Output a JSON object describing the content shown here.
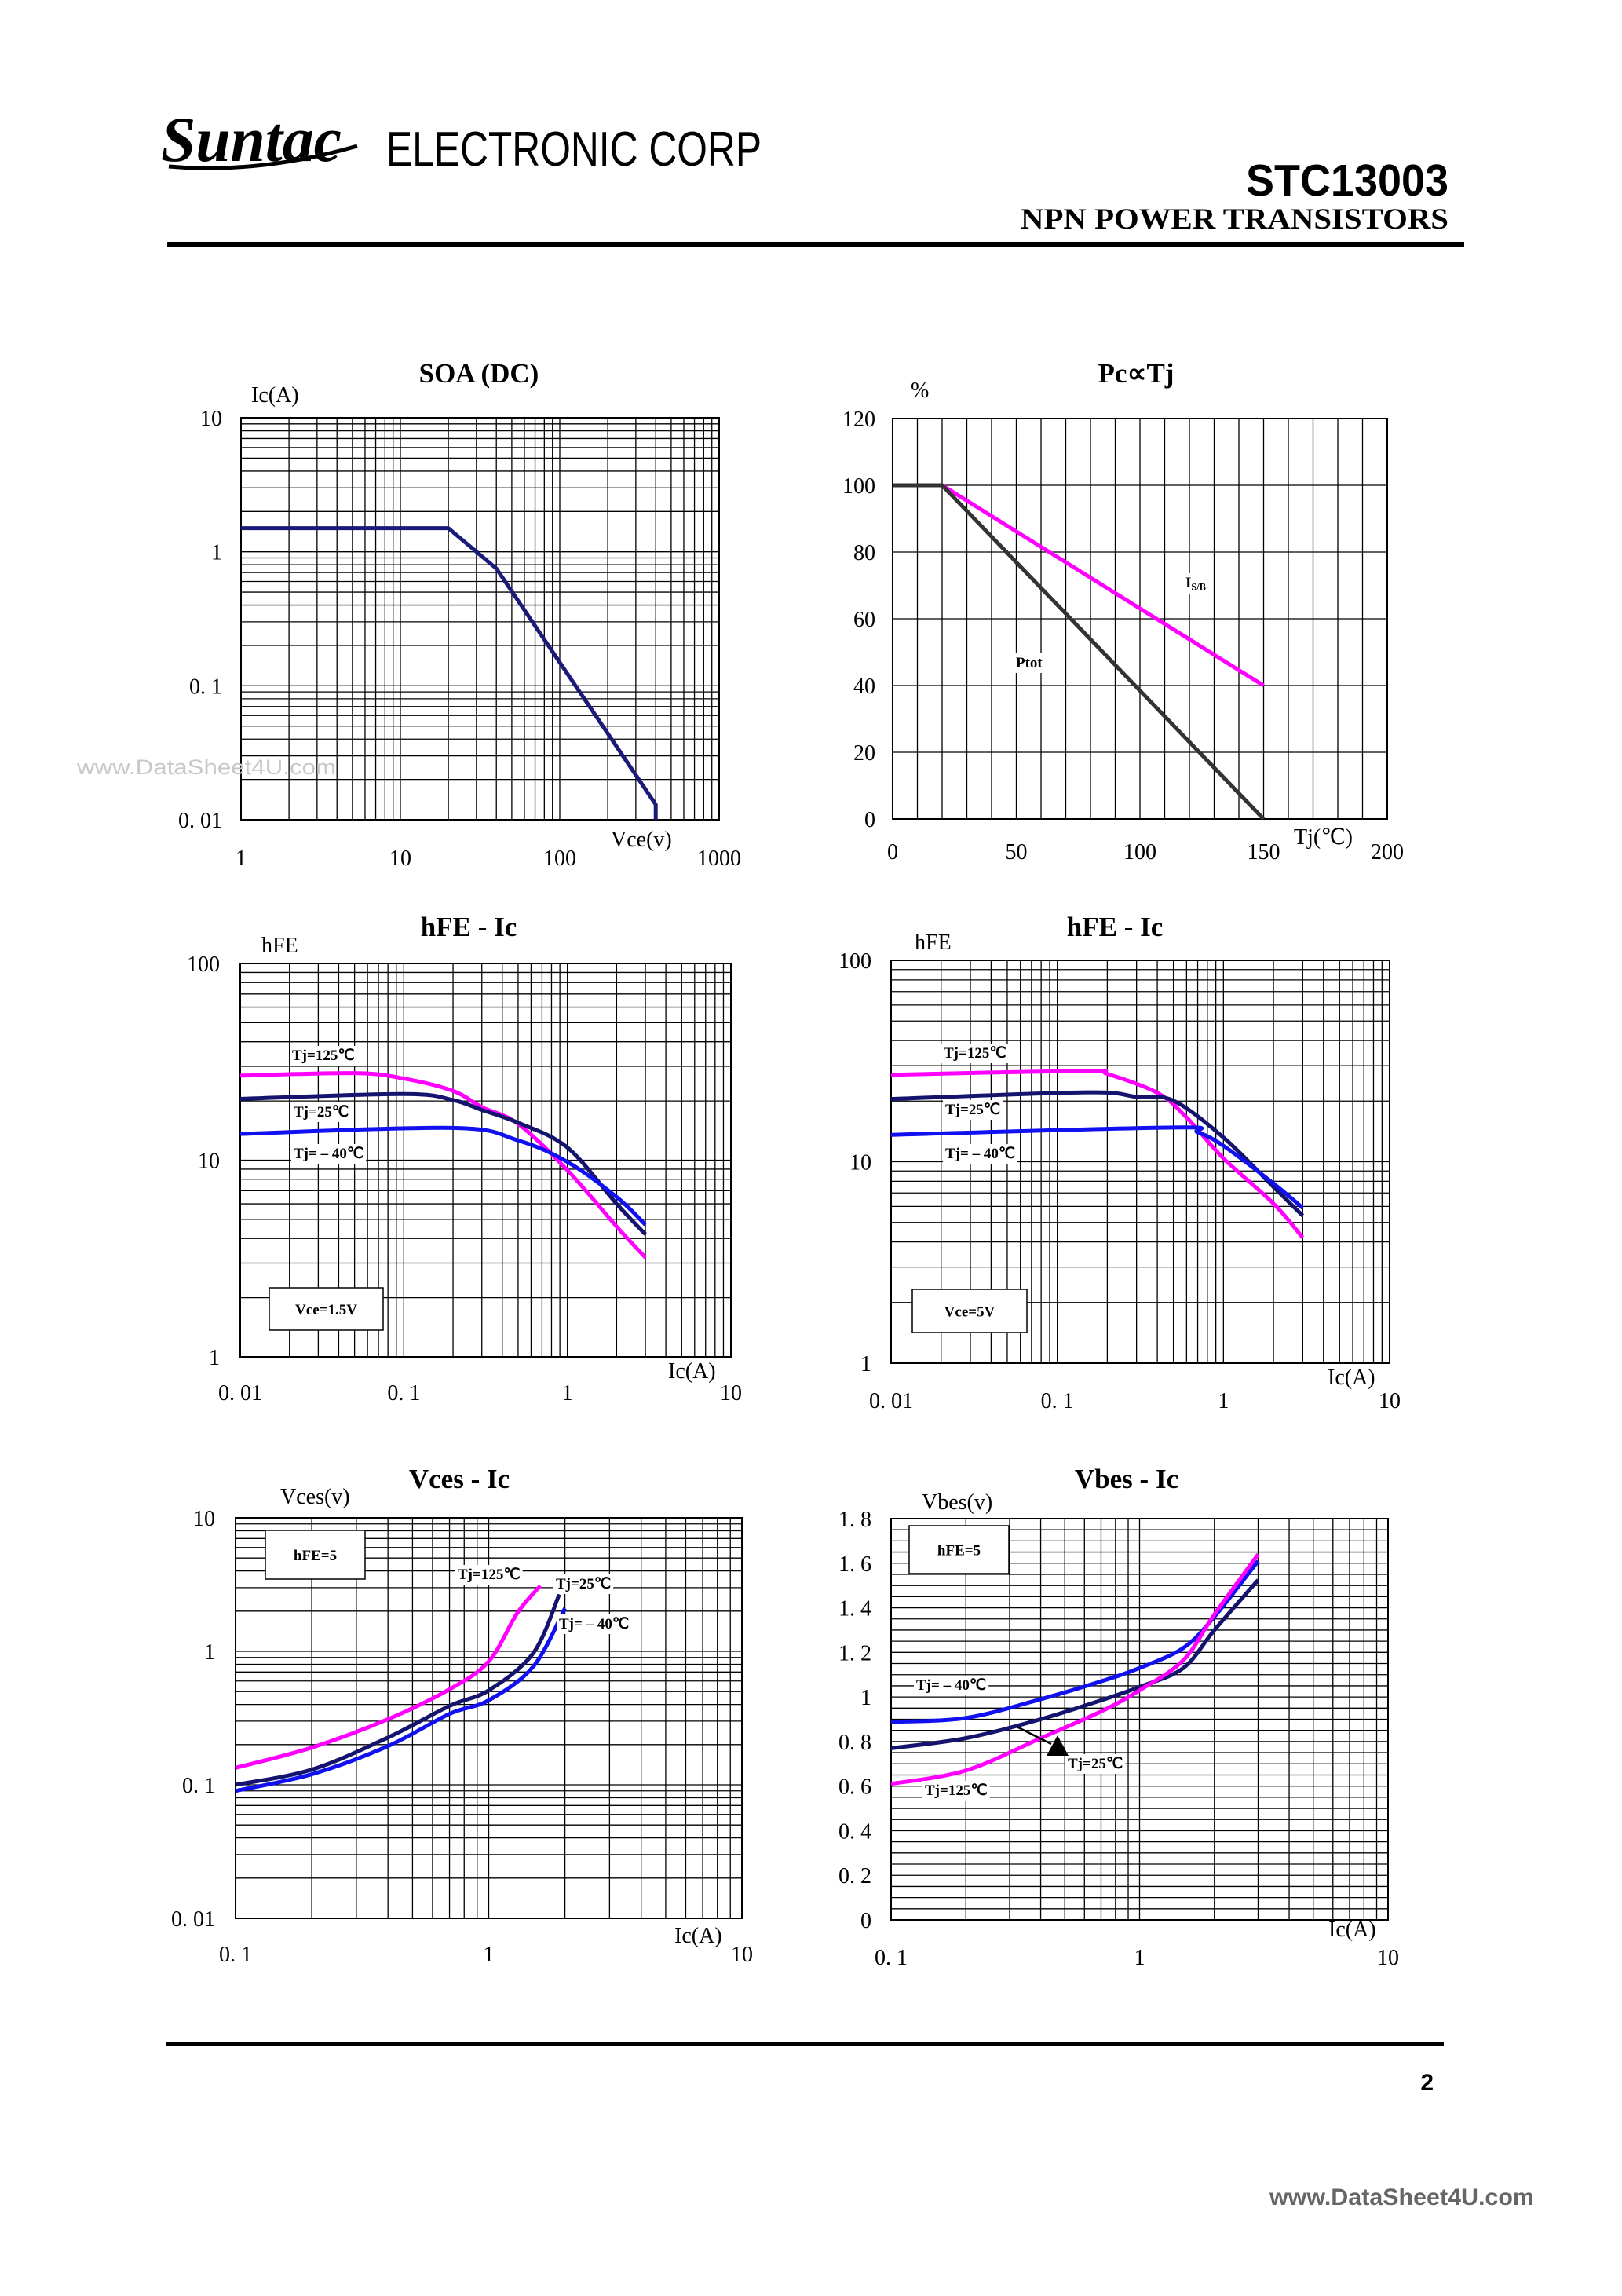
{
  "header": {
    "logo_text": "Suntac",
    "company": "ELECTRONIC CORP",
    "part_number": "STC13003",
    "subtitle": "NPN POWER TRANSISTORS"
  },
  "footer": {
    "page_number": "2",
    "watermark": "www.DataSheet4U.com"
  },
  "chart_watermark": "www.DataSheet4U.com",
  "colors": {
    "tj125": "#ff00ff",
    "tj25": "#14146e",
    "tj_minus40": "#1010f0",
    "soa_curve": "#1a1a78",
    "ptot": "#333333",
    "isb": "#ff00ff"
  },
  "chart_data": [
    {
      "type": "line",
      "title": "SOA (DC)",
      "xlabel": "Vce(v)",
      "ylabel": "Ic(A)",
      "xscale": "log",
      "yscale": "log",
      "xlim": [
        1,
        1000
      ],
      "ylim": [
        0.01,
        10
      ],
      "grid": true,
      "x_ticks": [
        {
          "value": 1,
          "label": "1"
        },
        {
          "value": 10,
          "label": "10"
        },
        {
          "value": 100,
          "label": "100"
        },
        {
          "value": 1000,
          "label": "1000"
        }
      ],
      "y_ticks": [
        {
          "value": 10,
          "label": "10"
        },
        {
          "value": 1,
          "label": "1"
        },
        {
          "value": 0.1,
          "label": "0. 1"
        },
        {
          "value": 0.01,
          "label": "0. 01"
        }
      ],
      "series": [
        {
          "color_key": "soa_curve",
          "x": [
            1,
            20,
            40,
            400,
            400
          ],
          "y": [
            1.5,
            1.5,
            0.75,
            0.013,
            0.01
          ]
        }
      ]
    },
    {
      "type": "line",
      "title": "Pc∝Tj",
      "xlabel": "Tj(℃)",
      "ylabel": "%",
      "xscale": "linear",
      "yscale": "linear",
      "xlim": [
        0,
        200
      ],
      "ylim": [
        0,
        120
      ],
      "grid": true,
      "x_ticks": [
        {
          "value": 0,
          "label": "0"
        },
        {
          "value": 50,
          "label": "50"
        },
        {
          "value": 100,
          "label": "100"
        },
        {
          "value": 150,
          "label": "150"
        },
        {
          "value": 200,
          "label": "200"
        }
      ],
      "y_ticks": [
        {
          "value": 120,
          "label": "120"
        },
        {
          "value": 100,
          "label": "100"
        },
        {
          "value": 80,
          "label": "80"
        },
        {
          "value": 60,
          "label": "60"
        },
        {
          "value": 40,
          "label": "40"
        },
        {
          "value": 20,
          "label": "20"
        },
        {
          "value": 0,
          "label": "0"
        }
      ],
      "series": [
        {
          "name": "IS/B",
          "color_key": "isb",
          "x": [
            0,
            20,
            150
          ],
          "y": [
            100,
            100,
            40
          ]
        },
        {
          "name": "Ptot",
          "color_key": "ptot",
          "x": [
            0,
            20,
            150
          ],
          "y": [
            100,
            100,
            0
          ]
        }
      ]
    },
    {
      "type": "line",
      "title": "hFE - Ic",
      "xlabel": "Ic(A)",
      "ylabel": "hFE",
      "condition": "Vce=1.5V",
      "xscale": "log",
      "yscale": "log",
      "xlim": [
        0.01,
        10
      ],
      "ylim": [
        1,
        100
      ],
      "grid": true,
      "x_ticks": [
        {
          "value": 0.01,
          "label": "0. 01"
        },
        {
          "value": 0.1,
          "label": "0. 1"
        },
        {
          "value": 1,
          "label": "1"
        },
        {
          "value": 10,
          "label": "10"
        }
      ],
      "y_ticks": [
        {
          "value": 100,
          "label": "100"
        },
        {
          "value": 10,
          "label": "10"
        },
        {
          "value": 1,
          "label": "1"
        }
      ],
      "series": [
        {
          "name": "Tj=125℃",
          "color_key": "tj125",
          "x": [
            0.01,
            0.05,
            0.1,
            0.2,
            0.3,
            0.5,
            1,
            2,
            3
          ],
          "y": [
            26.9,
            27.7,
            26,
            22.5,
            18.6,
            15.3,
            8.9,
            4.6,
            3.2
          ]
        },
        {
          "name": "Tj=25℃",
          "color_key": "tj25",
          "x": [
            0.01,
            0.1,
            0.2,
            0.3,
            0.5,
            1,
            2,
            3
          ],
          "y": [
            20.5,
            21.7,
            20.2,
            18,
            15.5,
            11.6,
            6.0,
            4.2
          ]
        },
        {
          "name": "Tj= – 40℃",
          "color_key": "tj_minus40",
          "x": [
            0.01,
            0.2,
            0.5,
            1,
            2,
            3
          ],
          "y": [
            13.6,
            14.6,
            12.6,
            9.8,
            6.5,
            4.7
          ]
        }
      ]
    },
    {
      "type": "line",
      "title": "hFE - Ic",
      "xlabel": "Ic(A)",
      "ylabel": "hFE",
      "condition": "Vce=5V",
      "xscale": "log",
      "yscale": "log",
      "xlim": [
        0.01,
        10
      ],
      "ylim": [
        1,
        100
      ],
      "grid": true,
      "x_ticks": [
        {
          "value": 0.01,
          "label": "0. 01"
        },
        {
          "value": 0.1,
          "label": "0. 1"
        },
        {
          "value": 1,
          "label": "1"
        },
        {
          "value": 10,
          "label": "10"
        }
      ],
      "y_ticks": [
        {
          "value": 100,
          "label": "100"
        },
        {
          "value": 10,
          "label": "10"
        },
        {
          "value": 1,
          "label": "1"
        }
      ],
      "series": [
        {
          "name": "Tj=125℃",
          "color_key": "tj125",
          "x": [
            0.01,
            0.15,
            0.2,
            0.4,
            0.6,
            1,
            2,
            3
          ],
          "y": [
            27,
            28.3,
            27.3,
            22,
            16.6,
            10.4,
            6.2,
            4.2
          ]
        },
        {
          "name": "Tj=25℃",
          "color_key": "tj25",
          "x": [
            0.01,
            0.15,
            0.3,
            0.5,
            1,
            2,
            3
          ],
          "y": [
            20.5,
            22.1,
            21,
            20.1,
            13.2,
            7.5,
            5.4
          ]
        },
        {
          "name": "Tj= – 40℃",
          "color_key": "tj_minus40",
          "x": [
            0.01,
            0.5,
            0.7,
            1,
            2,
            3
          ],
          "y": [
            13.6,
            14.8,
            14,
            12,
            7.8,
            5.9
          ]
        }
      ]
    },
    {
      "type": "line",
      "title": "Vces - Ic",
      "xlabel": "Ic(A)",
      "ylabel": "Vces(v)",
      "condition": "hFE=5",
      "xscale": "log",
      "yscale": "log",
      "xlim": [
        0.1,
        10
      ],
      "ylim": [
        0.01,
        10
      ],
      "grid": true,
      "x_ticks": [
        {
          "value": 0.1,
          "label": "0. 1"
        },
        {
          "value": 1,
          "label": "1"
        },
        {
          "value": 10,
          "label": "10"
        }
      ],
      "y_ticks": [
        {
          "value": 10,
          "label": "10"
        },
        {
          "value": 1,
          "label": "1"
        },
        {
          "value": 0.1,
          "label": "0. 1"
        },
        {
          "value": 0.01,
          "label": "0. 01"
        }
      ],
      "series": [
        {
          "name": "Tj=125℃",
          "color_key": "tj125",
          "x": [
            0.1,
            0.2,
            0.4,
            0.7,
            1,
            1.3,
            1.6
          ],
          "y": [
            0.134,
            0.19,
            0.31,
            0.52,
            0.84,
            1.95,
            3.1
          ]
        },
        {
          "name": "Tj=25℃",
          "color_key": "tj25",
          "x": [
            0.1,
            0.2,
            0.4,
            0.7,
            1,
            1.5,
            1.9
          ],
          "y": [
            0.1,
            0.13,
            0.226,
            0.39,
            0.51,
            0.97,
            2.67
          ]
        },
        {
          "name": "Tj= – 40℃",
          "color_key": "tj_minus40",
          "x": [
            0.1,
            0.2,
            0.4,
            0.7,
            1,
            1.5,
            2
          ],
          "y": [
            0.09,
            0.12,
            0.195,
            0.34,
            0.43,
            0.77,
            2.1
          ]
        }
      ]
    },
    {
      "type": "line",
      "title": "Vbes - Ic",
      "xlabel": "Ic(A)",
      "ylabel": "Vbes(v)",
      "condition": "hFE=5",
      "xscale": "log",
      "yscale": "linear",
      "xlim": [
        0.1,
        10
      ],
      "ylim": [
        0,
        1.8
      ],
      "grid": true,
      "x_ticks": [
        {
          "value": 0.1,
          "label": "0. 1"
        },
        {
          "value": 1,
          "label": "1"
        },
        {
          "value": 10,
          "label": "10"
        }
      ],
      "y_ticks": [
        {
          "value": 1.8,
          "label": "1. 8"
        },
        {
          "value": 1.6,
          "label": "1. 6"
        },
        {
          "value": 1.4,
          "label": "1. 4"
        },
        {
          "value": 1.2,
          "label": "1. 2"
        },
        {
          "value": 1,
          "label": "1"
        },
        {
          "value": 0.8,
          "label": "0. 8"
        },
        {
          "value": 0.6,
          "label": "0. 6"
        },
        {
          "value": 0.4,
          "label": "0. 4"
        },
        {
          "value": 0.2,
          "label": "0. 2"
        },
        {
          "value": 0,
          "label": "0"
        }
      ],
      "series": [
        {
          "name": "Tj= – 40℃",
          "color_key": "tj_minus40",
          "x": [
            0.1,
            0.2,
            0.4,
            0.7,
            1,
            1.5,
            2,
            3
          ],
          "y": [
            0.888,
            0.906,
            0.99,
            1.07,
            1.13,
            1.22,
            1.36,
            1.61
          ]
        },
        {
          "name": "Tj=25℃",
          "color_key": "tj25",
          "x": [
            0.1,
            0.2,
            0.4,
            0.7,
            1,
            1.5,
            2,
            3
          ],
          "y": [
            0.77,
            0.815,
            0.9,
            0.985,
            1.045,
            1.13,
            1.3,
            1.525
          ]
        },
        {
          "name": "Tj=125℃",
          "color_key": "tj125",
          "x": [
            0.1,
            0.2,
            0.4,
            0.7,
            1,
            1.5,
            2,
            3
          ],
          "y": [
            0.61,
            0.67,
            0.815,
            0.935,
            1.03,
            1.165,
            1.37,
            1.64
          ]
        }
      ]
    }
  ]
}
